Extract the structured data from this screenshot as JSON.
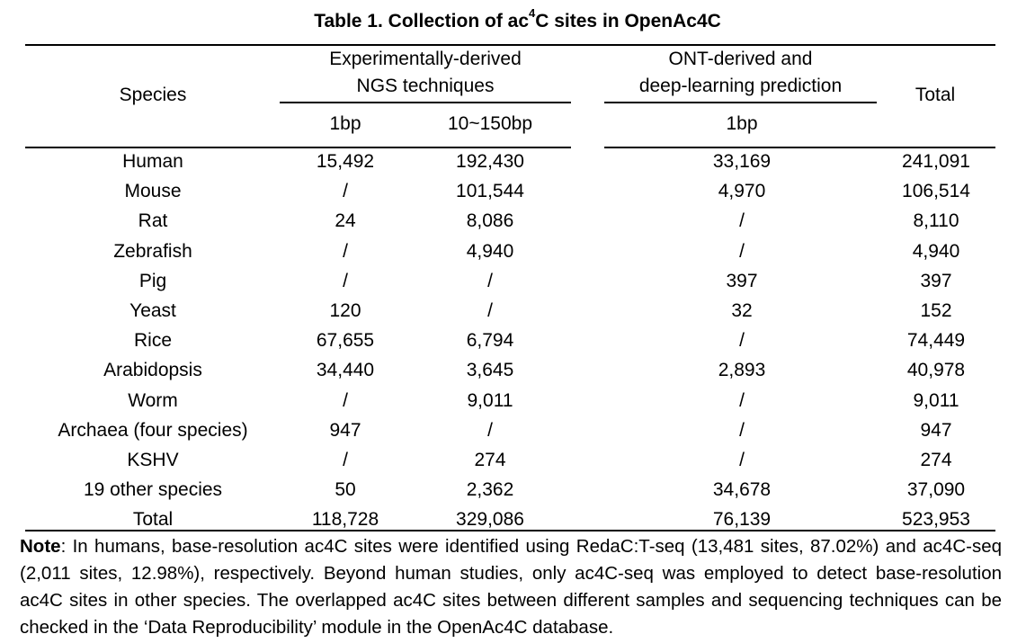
{
  "title": {
    "prefix": "Table 1. Collection of ac",
    "sup": "4",
    "suffix": "C sites in OpenAc4C"
  },
  "headers": {
    "species": "Species",
    "ngs_line1": "Experimentally-derived",
    "ngs_line2": "NGS techniques",
    "ont_line1": "ONT-derived and",
    "ont_line2": "deep-learning prediction",
    "total": "Total",
    "sub_1bp_a": "1bp",
    "sub_10_150": "10~150bp",
    "sub_1bp_b": "1bp"
  },
  "rows": [
    {
      "species": "Human",
      "ngs_1bp": "15,492",
      "ngs_10_150": "192,430",
      "ont_1bp": "33,169",
      "total": "241,091"
    },
    {
      "species": "Mouse",
      "ngs_1bp": "/",
      "ngs_10_150": "101,544",
      "ont_1bp": "4,970",
      "total": "106,514"
    },
    {
      "species": "Rat",
      "ngs_1bp": "24",
      "ngs_10_150": "8,086",
      "ont_1bp": "/",
      "total": "8,110"
    },
    {
      "species": "Zebrafish",
      "ngs_1bp": "/",
      "ngs_10_150": "4,940",
      "ont_1bp": "/",
      "total": "4,940"
    },
    {
      "species": "Pig",
      "ngs_1bp": "/",
      "ngs_10_150": "/",
      "ont_1bp": "397",
      "total": "397"
    },
    {
      "species": "Yeast",
      "ngs_1bp": "120",
      "ngs_10_150": "/",
      "ont_1bp": "32",
      "total": "152"
    },
    {
      "species": "Rice",
      "ngs_1bp": "67,655",
      "ngs_10_150": "6,794",
      "ont_1bp": "/",
      "total": "74,449"
    },
    {
      "species": "Arabidopsis",
      "ngs_1bp": "34,440",
      "ngs_10_150": "3,645",
      "ont_1bp": "2,893",
      "total": "40,978"
    },
    {
      "species": "Worm",
      "ngs_1bp": "/",
      "ngs_10_150": "9,011",
      "ont_1bp": "/",
      "total": "9,011"
    },
    {
      "species": "Archaea (four species)",
      "ngs_1bp": "947",
      "ngs_10_150": "/",
      "ont_1bp": "/",
      "total": "947"
    },
    {
      "species": "KSHV",
      "ngs_1bp": "/",
      "ngs_10_150": "274",
      "ont_1bp": "/",
      "total": "274"
    },
    {
      "species": "19 other species",
      "ngs_1bp": "50",
      "ngs_10_150": "2,362",
      "ont_1bp": "34,678",
      "total": "37,090"
    },
    {
      "species": "Total",
      "ngs_1bp": "118,728",
      "ngs_10_150": "329,086",
      "ont_1bp": "76,139",
      "total": "523,953"
    }
  ],
  "note": {
    "label": "Note",
    "text": ": In humans, base-resolution ac4C sites were identified using RedaC:T-seq (13,481 sites, 87.02%) and ac4C-seq (2,011 sites, 12.98%), respectively. Beyond human studies, only ac4C-seq was employed to detect base-resolution ac4C sites in other species. The overlapped ac4C sites between different samples and sequencing techniques can be checked in the ‘Data Reproducibility’ module in the OpenAc4C database."
  }
}
